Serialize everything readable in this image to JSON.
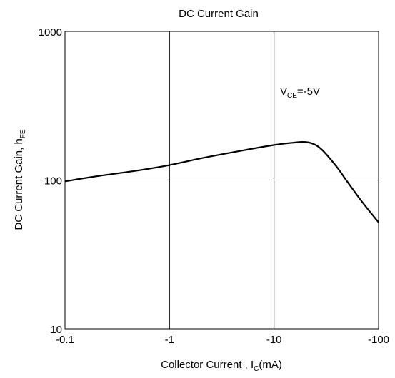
{
  "chart_data": {
    "type": "line",
    "title": "DC Current Gain",
    "xlabel": {
      "main": "Collector Current , I",
      "sub": "C",
      "suffix": "(mA)"
    },
    "ylabel": {
      "main": "DC Current Gain, h",
      "sub": "FE"
    },
    "x_scale": "log",
    "y_scale": "log",
    "xlim": [
      -0.1,
      -100
    ],
    "ylim": [
      10,
      1000
    ],
    "x_ticks": [
      -0.1,
      -1,
      -10,
      -100
    ],
    "x_tick_labels": [
      "-0.1",
      "-1",
      "-10",
      "-100"
    ],
    "y_ticks": [
      10,
      100,
      1000
    ],
    "y_tick_labels": [
      "10",
      "100",
      "1000"
    ],
    "grid": true,
    "annotation": {
      "main": "V",
      "sub": "CE",
      "suffix": "=-5V"
    },
    "series": [
      {
        "x": [
          -0.1,
          -0.2,
          -0.5,
          -1,
          -2,
          -5,
          -10,
          -15,
          -20,
          -25,
          -30,
          -40,
          -50,
          -70,
          -100
        ],
        "y": [
          98,
          106,
          116,
          126,
          140,
          158,
          172,
          178,
          180,
          172,
          155,
          122,
          98,
          71,
          52
        ]
      }
    ],
    "colors": {
      "line": "#000000",
      "grid": "#000000"
    }
  }
}
